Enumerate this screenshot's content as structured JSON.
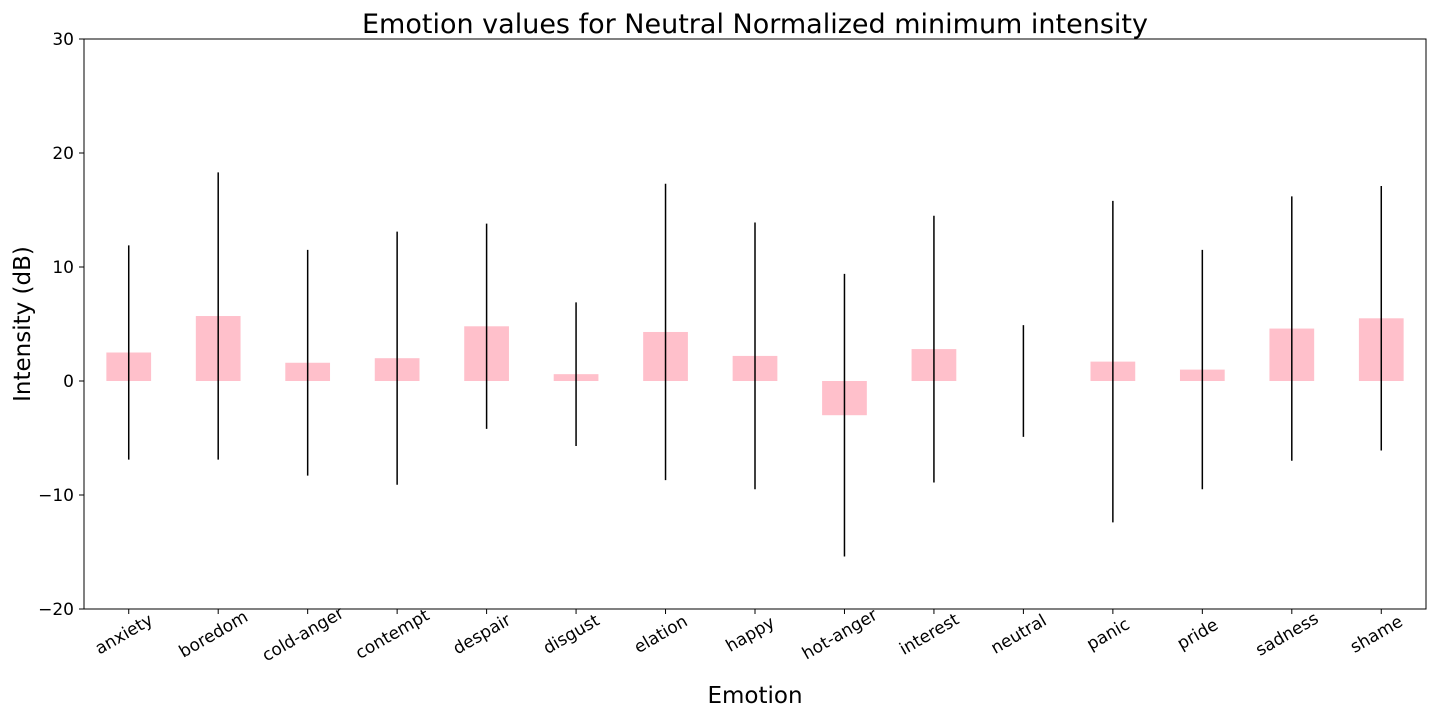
{
  "chart_data": {
    "type": "bar",
    "title": "Emotion values for Neutral Normalized minimum intensity",
    "xlabel": "Emotion",
    "ylabel": "Intensity (dB)",
    "ylim": [
      -20,
      30
    ],
    "yticks": [
      -20,
      -10,
      0,
      10,
      20,
      30
    ],
    "ytick_labels": [
      "−20",
      "−10",
      "0",
      "10",
      "20",
      "30"
    ],
    "grid": false,
    "bar_color": "#ffc0cb",
    "errorbar_color": "#000000",
    "categories": [
      "anxiety",
      "boredom",
      "cold-anger",
      "contempt",
      "despair",
      "disgust",
      "elation",
      "happy",
      "hot-anger",
      "interest",
      "neutral",
      "panic",
      "pride",
      "sadness",
      "shame"
    ],
    "values": [
      2.5,
      5.7,
      1.6,
      2.0,
      4.8,
      0.6,
      4.3,
      2.2,
      -3.0,
      2.8,
      0.0,
      1.7,
      1.0,
      4.6,
      5.5
    ],
    "errors": [
      9.4,
      12.6,
      9.9,
      11.1,
      9.0,
      6.3,
      13.0,
      11.7,
      12.4,
      11.7,
      4.9,
      14.1,
      10.5,
      11.6,
      11.6
    ]
  }
}
